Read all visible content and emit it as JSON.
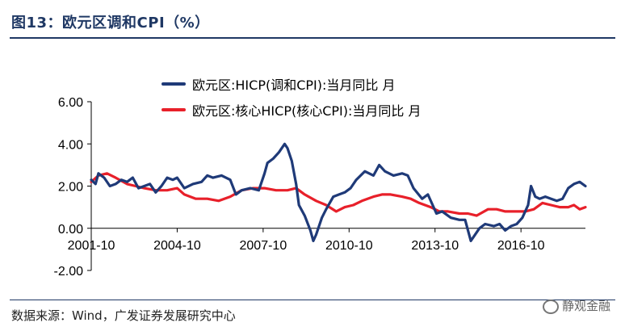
{
  "title": "图13：欧元区调和CPI（%）",
  "source": "数据来源：Wind，广发证券发展研究中心",
  "watermark": "静观金融",
  "watermark_icon": "wechat-icon",
  "chart_data": {
    "type": "line",
    "ylim": [
      -2,
      6
    ],
    "yticks": [
      "6.00",
      "4.00",
      "2.00",
      "0.00",
      "-2.00"
    ],
    "ytick_values": [
      6,
      4,
      2,
      0,
      -2
    ],
    "xticks": [
      "2001-10",
      "2004-10",
      "2007-10",
      "2010-10",
      "2013-10",
      "2016-10"
    ],
    "xtick_years": [
      2001.75,
      2004.75,
      2007.75,
      2010.75,
      2013.75,
      2016.75
    ],
    "xlim": [
      2001.75,
      2019.0
    ],
    "legend_position": "top",
    "series": [
      {
        "name": "欧元区:HICP(调和CPI):当月同比 月",
        "color": "#1f3a78",
        "points": [
          [
            2001.75,
            2.3
          ],
          [
            2001.9,
            2.1
          ],
          [
            2002.0,
            2.6
          ],
          [
            2002.2,
            2.4
          ],
          [
            2002.4,
            2.0
          ],
          [
            2002.6,
            2.1
          ],
          [
            2002.8,
            2.3
          ],
          [
            2003.0,
            2.2
          ],
          [
            2003.2,
            2.4
          ],
          [
            2003.4,
            1.9
          ],
          [
            2003.6,
            2.0
          ],
          [
            2003.8,
            2.1
          ],
          [
            2004.0,
            1.7
          ],
          [
            2004.2,
            2.0
          ],
          [
            2004.4,
            2.4
          ],
          [
            2004.6,
            2.3
          ],
          [
            2004.75,
            2.4
          ],
          [
            2005.0,
            1.9
          ],
          [
            2005.3,
            2.1
          ],
          [
            2005.6,
            2.2
          ],
          [
            2005.8,
            2.5
          ],
          [
            2006.0,
            2.4
          ],
          [
            2006.3,
            2.5
          ],
          [
            2006.6,
            2.3
          ],
          [
            2006.8,
            1.6
          ],
          [
            2007.0,
            1.8
          ],
          [
            2007.3,
            1.9
          ],
          [
            2007.6,
            1.8
          ],
          [
            2007.8,
            2.6
          ],
          [
            2007.9,
            3.1
          ],
          [
            2008.1,
            3.3
          ],
          [
            2008.3,
            3.6
          ],
          [
            2008.5,
            4.0
          ],
          [
            2008.6,
            3.8
          ],
          [
            2008.75,
            3.2
          ],
          [
            2008.9,
            2.1
          ],
          [
            2009.0,
            1.1
          ],
          [
            2009.2,
            0.6
          ],
          [
            2009.4,
            -0.1
          ],
          [
            2009.5,
            -0.6
          ],
          [
            2009.6,
            -0.3
          ],
          [
            2009.8,
            0.5
          ],
          [
            2009.95,
            0.9
          ],
          [
            2010.2,
            1.5
          ],
          [
            2010.4,
            1.6
          ],
          [
            2010.6,
            1.7
          ],
          [
            2010.8,
            1.9
          ],
          [
            2011.0,
            2.3
          ],
          [
            2011.3,
            2.7
          ],
          [
            2011.6,
            2.5
          ],
          [
            2011.8,
            3.0
          ],
          [
            2012.0,
            2.7
          ],
          [
            2012.3,
            2.5
          ],
          [
            2012.6,
            2.6
          ],
          [
            2012.8,
            2.5
          ],
          [
            2013.0,
            1.9
          ],
          [
            2013.3,
            1.4
          ],
          [
            2013.5,
            1.6
          ],
          [
            2013.8,
            0.7
          ],
          [
            2014.0,
            0.8
          ],
          [
            2014.3,
            0.5
          ],
          [
            2014.6,
            0.4
          ],
          [
            2014.8,
            0.4
          ],
          [
            2015.0,
            -0.6
          ],
          [
            2015.3,
            0.0
          ],
          [
            2015.5,
            0.2
          ],
          [
            2015.8,
            0.1
          ],
          [
            2016.0,
            0.2
          ],
          [
            2016.2,
            -0.1
          ],
          [
            2016.4,
            0.1
          ],
          [
            2016.6,
            0.2
          ],
          [
            2016.8,
            0.5
          ],
          [
            2017.0,
            1.1
          ],
          [
            2017.1,
            2.0
          ],
          [
            2017.25,
            1.5
          ],
          [
            2017.4,
            1.4
          ],
          [
            2017.6,
            1.5
          ],
          [
            2017.8,
            1.4
          ],
          [
            2018.0,
            1.3
          ],
          [
            2018.2,
            1.4
          ],
          [
            2018.4,
            1.9
          ],
          [
            2018.6,
            2.1
          ],
          [
            2018.8,
            2.2
          ],
          [
            2019.0,
            2.0
          ]
        ]
      },
      {
        "name": "欧元区:核心HICP(核心CPI):当月同比 月",
        "color": "#e8202a",
        "points": [
          [
            2001.75,
            2.2
          ],
          [
            2002.0,
            2.5
          ],
          [
            2002.3,
            2.6
          ],
          [
            2002.6,
            2.4
          ],
          [
            2003.0,
            2.1
          ],
          [
            2003.3,
            2.0
          ],
          [
            2003.6,
            1.9
          ],
          [
            2004.0,
            1.8
          ],
          [
            2004.4,
            1.8
          ],
          [
            2004.75,
            1.9
          ],
          [
            2005.0,
            1.6
          ],
          [
            2005.4,
            1.4
          ],
          [
            2005.8,
            1.4
          ],
          [
            2006.2,
            1.3
          ],
          [
            2006.6,
            1.5
          ],
          [
            2007.0,
            1.8
          ],
          [
            2007.4,
            1.9
          ],
          [
            2007.8,
            1.9
          ],
          [
            2008.2,
            1.8
          ],
          [
            2008.6,
            1.8
          ],
          [
            2008.9,
            1.9
          ],
          [
            2009.2,
            1.6
          ],
          [
            2009.6,
            1.3
          ],
          [
            2009.95,
            1.1
          ],
          [
            2010.3,
            0.8
          ],
          [
            2010.6,
            1.0
          ],
          [
            2010.9,
            1.1
          ],
          [
            2011.2,
            1.3
          ],
          [
            2011.6,
            1.5
          ],
          [
            2011.9,
            1.6
          ],
          [
            2012.2,
            1.6
          ],
          [
            2012.6,
            1.5
          ],
          [
            2012.9,
            1.4
          ],
          [
            2013.2,
            1.2
          ],
          [
            2013.6,
            1.0
          ],
          [
            2013.9,
            0.8
          ],
          [
            2014.2,
            0.8
          ],
          [
            2014.6,
            0.7
          ],
          [
            2014.9,
            0.7
          ],
          [
            2015.2,
            0.6
          ],
          [
            2015.6,
            0.9
          ],
          [
            2015.9,
            0.9
          ],
          [
            2016.2,
            0.8
          ],
          [
            2016.6,
            0.8
          ],
          [
            2016.9,
            0.8
          ],
          [
            2017.2,
            0.9
          ],
          [
            2017.5,
            1.2
          ],
          [
            2017.8,
            1.1
          ],
          [
            2018.1,
            1.0
          ],
          [
            2018.4,
            1.0
          ],
          [
            2018.6,
            1.1
          ],
          [
            2018.8,
            0.9
          ],
          [
            2019.0,
            1.0
          ]
        ]
      }
    ]
  }
}
